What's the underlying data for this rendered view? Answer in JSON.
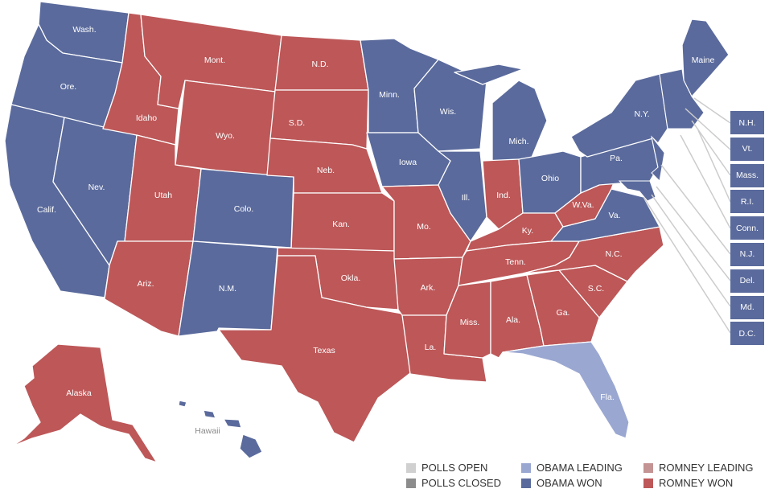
{
  "colors": {
    "obama_won": "#5a6a9c",
    "romney_won": "#bd5758",
    "obama_leading": "#9aa7d1",
    "romney_leading": "#c49393",
    "polls_open": "#d0d0d0",
    "polls_closed": "#8c8c8c",
    "border": "#ffffff"
  },
  "states": [
    {
      "label": "Wash.",
      "status": "obama_won"
    },
    {
      "label": "Ore.",
      "status": "obama_won"
    },
    {
      "label": "Calif.",
      "status": "obama_won"
    },
    {
      "label": "Nev.",
      "status": "obama_won"
    },
    {
      "label": "Idaho",
      "status": "romney_won"
    },
    {
      "label": "Mont.",
      "status": "romney_won"
    },
    {
      "label": "Wyo.",
      "status": "romney_won"
    },
    {
      "label": "Utah",
      "status": "romney_won"
    },
    {
      "label": "Ariz.",
      "status": "romney_won"
    },
    {
      "label": "Colo.",
      "status": "obama_won"
    },
    {
      "label": "N.M.",
      "status": "obama_won"
    },
    {
      "label": "N.D.",
      "status": "romney_won"
    },
    {
      "label": "S.D.",
      "status": "romney_won"
    },
    {
      "label": "Neb.",
      "status": "romney_won"
    },
    {
      "label": "Kan.",
      "status": "romney_won"
    },
    {
      "label": "Okla.",
      "status": "romney_won"
    },
    {
      "label": "Texas",
      "status": "romney_won"
    },
    {
      "label": "Minn.",
      "status": "obama_won"
    },
    {
      "label": "Iowa",
      "status": "obama_won"
    },
    {
      "label": "Mo.",
      "status": "romney_won"
    },
    {
      "label": "Ark.",
      "status": "romney_won"
    },
    {
      "label": "La.",
      "status": "romney_won"
    },
    {
      "label": "Wis.",
      "status": "obama_won"
    },
    {
      "label": "Ill.",
      "status": "obama_won"
    },
    {
      "label": "Mich.",
      "status": "obama_won"
    },
    {
      "label": "Ind.",
      "status": "romney_won"
    },
    {
      "label": "Ohio",
      "status": "obama_won"
    },
    {
      "label": "Ky.",
      "status": "romney_won"
    },
    {
      "label": "Tenn.",
      "status": "romney_won"
    },
    {
      "label": "Miss.",
      "status": "romney_won"
    },
    {
      "label": "Ala.",
      "status": "romney_won"
    },
    {
      "label": "Ga.",
      "status": "romney_won"
    },
    {
      "label": "Fla.",
      "status": "obama_leading"
    },
    {
      "label": "S.C.",
      "status": "romney_won"
    },
    {
      "label": "N.C.",
      "status": "romney_won"
    },
    {
      "label": "Va.",
      "status": "obama_won"
    },
    {
      "label": "W.Va.",
      "status": "romney_won"
    },
    {
      "label": "Pa.",
      "status": "obama_won"
    },
    {
      "label": "N.Y.",
      "status": "obama_won"
    },
    {
      "label": "Maine",
      "status": "obama_won"
    },
    {
      "label": "Alaska",
      "status": "romney_won"
    },
    {
      "label": "Hawaii",
      "status": "obama_won"
    }
  ],
  "small_states": [
    {
      "label": "N.H.",
      "status": "obama_won"
    },
    {
      "label": "Vt.",
      "status": "obama_won"
    },
    {
      "label": "Mass.",
      "status": "obama_won"
    },
    {
      "label": "R.I.",
      "status": "obama_won"
    },
    {
      "label": "Conn.",
      "status": "obama_won"
    },
    {
      "label": "N.J.",
      "status": "obama_won"
    },
    {
      "label": "Del.",
      "status": "obama_won"
    },
    {
      "label": "Md.",
      "status": "obama_won"
    },
    {
      "label": "D.C.",
      "status": "obama_won"
    }
  ],
  "legend": [
    {
      "label": "POLLS OPEN",
      "status": "polls_open"
    },
    {
      "label": "POLLS CLOSED",
      "status": "polls_closed"
    },
    {
      "label": "OBAMA LEADING",
      "status": "obama_leading"
    },
    {
      "label": "OBAMA WON",
      "status": "obama_won"
    },
    {
      "label": "ROMNEY LEADING",
      "status": "romney_leading"
    },
    {
      "label": "ROMNEY WON",
      "status": "romney_won"
    }
  ]
}
